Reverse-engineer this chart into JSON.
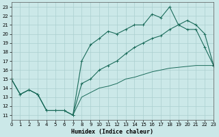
{
  "xlabel": "Humidex (Indice chaleur)",
  "xlim": [
    0,
    23
  ],
  "ylim": [
    10.5,
    23.5
  ],
  "xticks": [
    0,
    1,
    2,
    3,
    4,
    5,
    6,
    7,
    8,
    9,
    10,
    11,
    12,
    13,
    14,
    15,
    16,
    17,
    18,
    19,
    20,
    21,
    22,
    23
  ],
  "yticks": [
    11,
    12,
    13,
    14,
    15,
    16,
    17,
    18,
    19,
    20,
    21,
    22,
    23
  ],
  "bg_color": "#cbe8e8",
  "line_color": "#1a6b5a",
  "grid_color": "#aacfcf",
  "line1_x": [
    0,
    1,
    2,
    3,
    4,
    5,
    6,
    7,
    8,
    9,
    10,
    11,
    12,
    13,
    14,
    15,
    16,
    17,
    18,
    19,
    20,
    21,
    22,
    23
  ],
  "line1_y": [
    15.0,
    13.3,
    13.8,
    13.3,
    11.5,
    11.5,
    11.5,
    11.0,
    17.0,
    18.8,
    19.5,
    20.3,
    20.0,
    20.5,
    21.0,
    21.0,
    22.2,
    21.8,
    23.0,
    21.0,
    20.5,
    20.5,
    18.5,
    16.5
  ],
  "line2_x": [
    0,
    1,
    2,
    3,
    4,
    5,
    6,
    7,
    8,
    9,
    10,
    11,
    12,
    13,
    14,
    15,
    16,
    17,
    18,
    19,
    20,
    21,
    22,
    23
  ],
  "line2_y": [
    15.0,
    13.3,
    13.8,
    13.3,
    11.5,
    11.5,
    11.5,
    11.0,
    14.5,
    15.0,
    16.0,
    16.5,
    17.0,
    17.8,
    18.5,
    19.0,
    19.5,
    19.8,
    20.5,
    21.0,
    21.5,
    21.0,
    20.0,
    16.5
  ],
  "line3_x": [
    0,
    1,
    2,
    3,
    4,
    5,
    6,
    7,
    8,
    9,
    10,
    11,
    12,
    13,
    14,
    15,
    16,
    17,
    18,
    19,
    20,
    21,
    22,
    23
  ],
  "line3_y": [
    15.0,
    13.3,
    13.8,
    13.3,
    11.5,
    11.5,
    11.5,
    11.0,
    13.0,
    13.5,
    14.0,
    14.2,
    14.5,
    15.0,
    15.2,
    15.5,
    15.8,
    16.0,
    16.2,
    16.3,
    16.4,
    16.5,
    16.5,
    16.5
  ]
}
